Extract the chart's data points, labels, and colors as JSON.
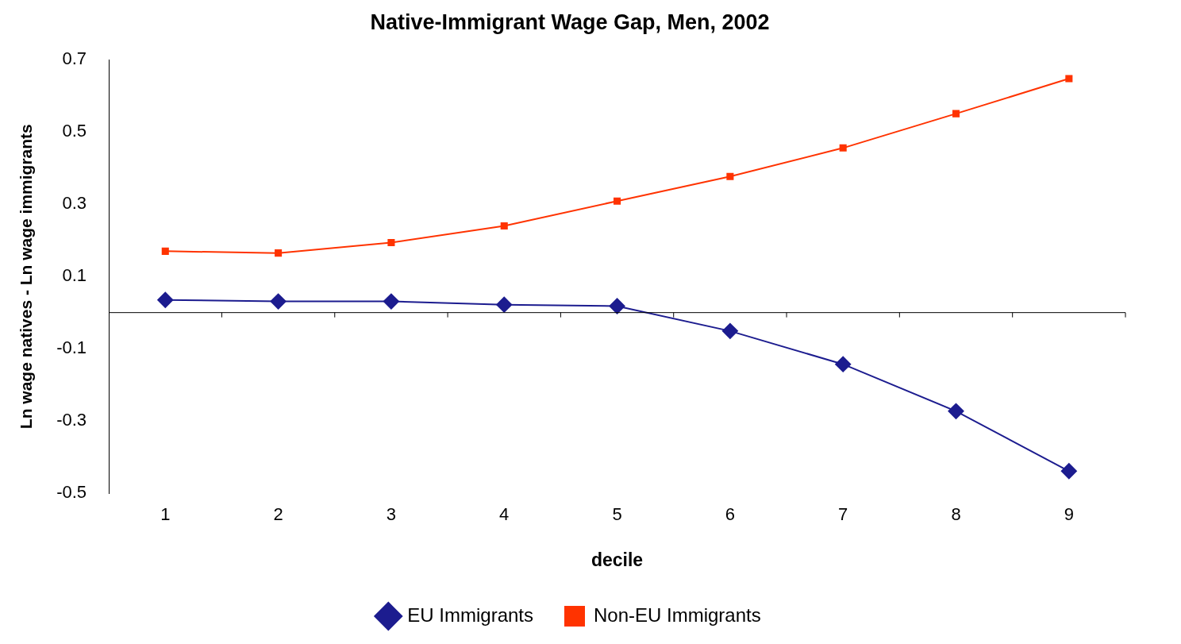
{
  "chart_data": {
    "type": "line",
    "title": "Native-Immigrant Wage Gap, Men, 2002",
    "xlabel": "decile",
    "ylabel": "Ln wage natives - Ln wage immigrants",
    "categories": [
      "1",
      "2",
      "3",
      "4",
      "5",
      "6",
      "7",
      "8",
      "9"
    ],
    "series": [
      {
        "name": "EU Immigrants",
        "color": "#1c1c8f",
        "marker": "diamond",
        "values": [
          0.035,
          0.031,
          0.031,
          0.022,
          0.018,
          -0.051,
          -0.143,
          -0.273,
          -0.439
        ]
      },
      {
        "name": "Non-EU Immigrants",
        "color": "#ff3300",
        "marker": "square",
        "values": [
          0.17,
          0.165,
          0.194,
          0.24,
          0.309,
          0.377,
          0.456,
          0.551,
          0.648
        ]
      }
    ],
    "ylim": [
      -0.5,
      0.7
    ],
    "yticks": [
      -0.5,
      -0.3,
      -0.1,
      0.1,
      0.3,
      0.5,
      0.7
    ],
    "grid": false,
    "legend": "bottom",
    "line_style": "solid"
  }
}
